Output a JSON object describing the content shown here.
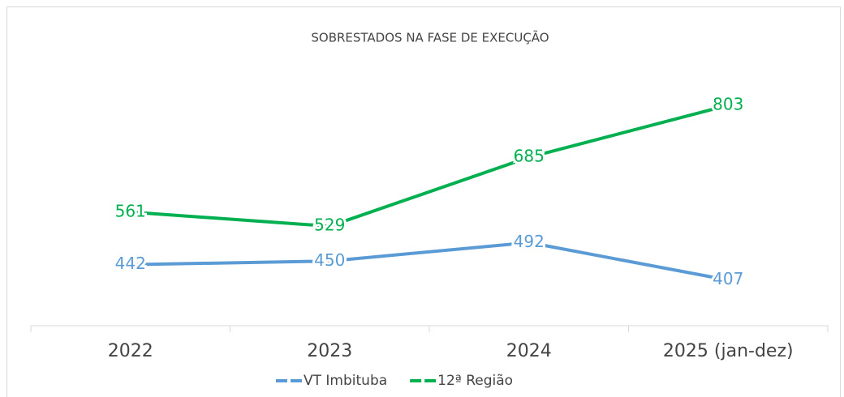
{
  "chart_data": {
    "type": "line",
    "title": "SOBRESTADOS NA FASE DE EXECUÇÃO",
    "categories": [
      "2022",
      "2023",
      "2024",
      "2025 (jan-dez)"
    ],
    "series": [
      {
        "name": "VT Imbituba",
        "color": "#5b9bd5",
        "values": [
          442,
          450,
          492,
          407
        ]
      },
      {
        "name": "12ª Região",
        "color": "#00b050",
        "values": [
          561,
          529,
          685,
          803
        ]
      }
    ],
    "ylim": [
      300,
      900
    ],
    "legend": "bottom"
  }
}
